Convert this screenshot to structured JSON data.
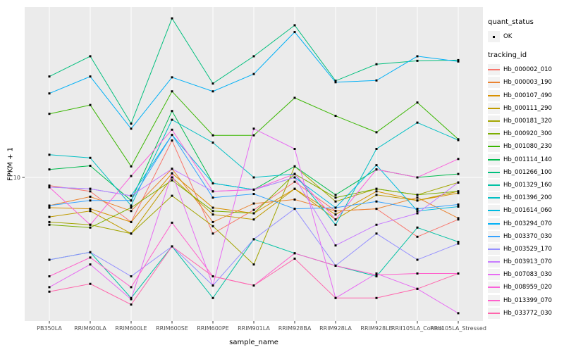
{
  "figure": {
    "background": "#FFFFFF",
    "panel_bg": "#EBEBEB",
    "gridline_color": "#FFFFFF",
    "axis_text_color": "#4D4D4D",
    "tick_mark_color": "#333333",
    "point_color": "#000000"
  },
  "chart_data": {
    "type": "line",
    "title": "",
    "xlabel": "sample_name",
    "ylabel": "FPKM + 1",
    "y_scale": "log10",
    "y_tick_labels": [
      "10"
    ],
    "y_tick_values": [
      10
    ],
    "ylim_log10": [
      0.08,
      2.06
    ],
    "grid": "major-only",
    "legend_position": "right",
    "x_categories": [
      "PB350LA",
      "RRIM600LA",
      "RRIM600LE",
      "RRIM600SE",
      "RRIM600PE",
      "RRIM901LA",
      "RRIM928BA",
      "RRIM928LA",
      "RRIM928LE",
      "RRII105LA_Control",
      "RRII105LA_Stressed"
    ],
    "legend": {
      "quant_status_title": "quant_status",
      "quant_status_items": [
        "OK"
      ],
      "tracking_id_title": "tracking_id"
    },
    "series": [
      {
        "name": "Hb_000002_010",
        "color": "#F8766D",
        "values": [
          8.9,
          8.2,
          5.3,
          16.9,
          4.5,
          6.3,
          9.4,
          6.2,
          6.4,
          4.3,
          5.5
        ]
      },
      {
        "name": "Hb_000003_190",
        "color": "#EA8331",
        "values": [
          6.7,
          7.6,
          6.2,
          11.3,
          5.3,
          6.9,
          7.3,
          6.2,
          6.4,
          7.5,
          5.6
        ]
      },
      {
        "name": "Hb_000107_490",
        "color": "#D89000",
        "values": [
          6.5,
          6.4,
          5.3,
          10.6,
          6.5,
          6.0,
          8.5,
          5.9,
          8.2,
          7.2,
          8.0
        ]
      },
      {
        "name": "Hb_000111_290",
        "color": "#C09B00",
        "values": [
          5.7,
          6.2,
          4.5,
          10.0,
          5.9,
          5.5,
          8.5,
          5.5,
          7.8,
          7.2,
          8.2
        ]
      },
      {
        "name": "Hb_000181_320",
        "color": "#A3A500",
        "values": [
          5.3,
          5.1,
          4.5,
          7.7,
          5.0,
          2.9,
          11.7,
          7.1,
          8.5,
          7.8,
          9.3
        ]
      },
      {
        "name": "Hb_000920_300",
        "color": "#7CAE00",
        "values": [
          5.1,
          4.9,
          6.5,
          9.6,
          6.2,
          6.0,
          10.5,
          7.5,
          8.5,
          7.8,
          8.2
        ]
      },
      {
        "name": "Hb_001080_230",
        "color": "#39B600",
        "values": [
          24.7,
          28,
          11.7,
          34,
          18.2,
          18.2,
          31,
          24,
          19,
          29,
          17.2
        ]
      },
      {
        "name": "Hb_001114_140",
        "color": "#00BB4E",
        "values": [
          11.2,
          11.8,
          7.2,
          25.7,
          9.2,
          8.4,
          11.7,
          7.8,
          11.2,
          10,
          10.5
        ]
      },
      {
        "name": "Hb_001266_100",
        "color": "#00BF7D",
        "values": [
          42,
          56,
          21.5,
          96,
          38,
          56,
          87,
          39.5,
          50,
          52.5,
          53
        ]
      },
      {
        "name": "Hb_001329_160",
        "color": "#00C1A3",
        "values": [
          3.1,
          3.45,
          1.8,
          3.75,
          1.8,
          4.15,
          3.4,
          2.85,
          2.45,
          4.9,
          4.0
        ]
      },
      {
        "name": "Hb_001396_200",
        "color": "#00BFC4",
        "values": [
          13.8,
          13.2,
          6.7,
          22.7,
          16.4,
          10,
          10.5,
          5.1,
          15,
          21.8,
          17
        ]
      },
      {
        "name": "Hb_001614_060",
        "color": "#00BAE0",
        "values": [
          8.7,
          8.5,
          7.7,
          18.3,
          9.2,
          8.4,
          10,
          6.5,
          11.9,
          6.2,
          6.6
        ]
      },
      {
        "name": "Hb_003294_070",
        "color": "#00B0F6",
        "values": [
          33,
          42,
          20,
          41.5,
          34,
          43.5,
          79,
          38.7,
          39.7,
          56,
          52
        ]
      },
      {
        "name": "Hb_003370_030",
        "color": "#35A2FF",
        "values": [
          6.7,
          7.2,
          7.2,
          18.3,
          7.5,
          7.9,
          6.4,
          6.5,
          7.1,
          6.4,
          6.8
        ]
      },
      {
        "name": "Hb_003529_170",
        "color": "#9590FF",
        "values": [
          3.1,
          3.45,
          2.45,
          3.75,
          2.15,
          4.15,
          6.4,
          2.85,
          4.5,
          3.1,
          3.9
        ]
      },
      {
        "name": "Hb_003913_070",
        "color": "#C77CFF",
        "values": [
          8.7,
          8.5,
          7.7,
          11.3,
          8.2,
          8.4,
          10,
          3.8,
          5.1,
          6.0,
          9.3
        ]
      },
      {
        "name": "Hb_007083_030",
        "color": "#E76BF3",
        "values": [
          2.1,
          2.9,
          1.77,
          10.6,
          2.15,
          20,
          15,
          1.8,
          2.55,
          2.05,
          1.45
        ]
      },
      {
        "name": "Hb_008959_020",
        "color": "#FA62DB",
        "values": [
          8.7,
          5.1,
          10.2,
          19.7,
          8.2,
          8.4,
          10.5,
          5.5,
          11.2,
          10,
          13
        ]
      },
      {
        "name": "Hb_013399_070",
        "color": "#FF61CC",
        "values": [
          2.45,
          3.2,
          2.1,
          5.25,
          2.45,
          2.15,
          3.4,
          2.85,
          2.5,
          2.55,
          2.55
        ]
      },
      {
        "name": "Hb_033772_030",
        "color": "#FF65AC",
        "values": [
          1.97,
          2.2,
          1.64,
          3.75,
          2.45,
          2.15,
          3.15,
          1.8,
          1.8,
          2.05,
          2.55
        ]
      }
    ]
  }
}
